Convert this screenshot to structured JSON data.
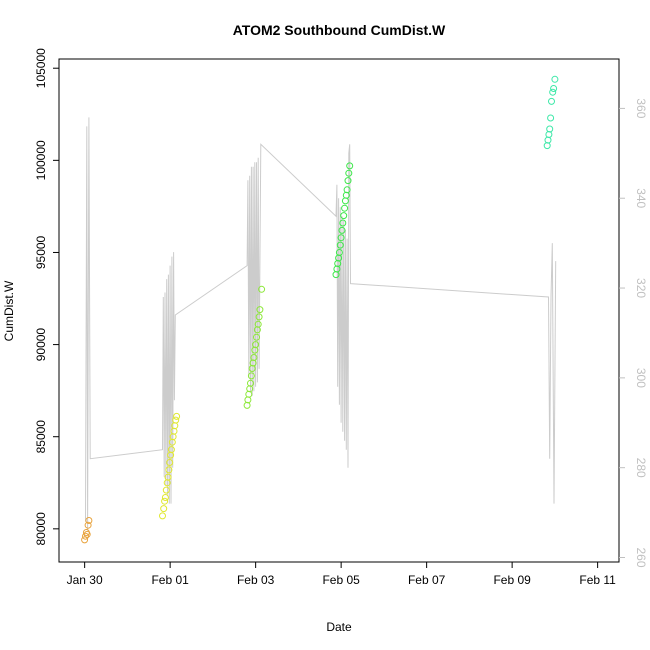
{
  "chart_data": {
    "type": "scatter",
    "title": "ATOM2 Southbound CumDist.W",
    "xlabel": "Date",
    "ylabel": "CumDist.W",
    "x_ticks": [
      "Jan 30",
      "Feb 01",
      "Feb 03",
      "Feb 05",
      "Feb 07",
      "Feb 09",
      "Feb 11"
    ],
    "x_tick_days": [
      0,
      2,
      4,
      6,
      8,
      10,
      12
    ],
    "xlim": [
      -0.6,
      12.5
    ],
    "ylim": [
      78200,
      105500
    ],
    "y_ticks": [
      80000,
      85000,
      90000,
      95000,
      100000,
      105000
    ],
    "y2lim": [
      259,
      371
    ],
    "y2_ticks": [
      260,
      280,
      300,
      320,
      340,
      360
    ],
    "grid": false,
    "series": [
      {
        "color": "#e8a33d",
        "points": [
          [
            0.0,
            79400
          ],
          [
            0.02,
            79600
          ],
          [
            0.04,
            79800
          ],
          [
            0.06,
            79700
          ],
          [
            0.08,
            80200
          ],
          [
            0.1,
            80450
          ]
        ]
      },
      {
        "color": "#e0e830",
        "points": [
          [
            1.82,
            80700
          ],
          [
            1.85,
            81100
          ],
          [
            1.87,
            81500
          ],
          [
            1.89,
            81700
          ],
          [
            1.91,
            82100
          ],
          [
            1.93,
            82500
          ],
          [
            1.95,
            82800
          ],
          [
            1.97,
            83200
          ],
          [
            1.99,
            83600
          ],
          [
            2.01,
            84000
          ],
          [
            2.03,
            84300
          ],
          [
            2.05,
            84700
          ],
          [
            2.07,
            85000
          ],
          [
            2.09,
            85300
          ],
          [
            2.11,
            85600
          ],
          [
            2.13,
            85900
          ],
          [
            2.15,
            86100
          ]
        ]
      },
      {
        "color": "#8ce838",
        "points": [
          [
            3.8,
            86700
          ],
          [
            3.82,
            87000
          ],
          [
            3.84,
            87300
          ],
          [
            3.86,
            87600
          ],
          [
            3.88,
            87900
          ],
          [
            3.9,
            88300
          ],
          [
            3.92,
            88700
          ],
          [
            3.94,
            89000
          ],
          [
            3.96,
            89300
          ],
          [
            3.98,
            89700
          ],
          [
            4.0,
            90000
          ],
          [
            4.02,
            90400
          ],
          [
            4.04,
            90800
          ],
          [
            4.06,
            91100
          ],
          [
            4.08,
            91500
          ],
          [
            4.1,
            91900
          ],
          [
            4.14,
            93000
          ]
        ]
      },
      {
        "color": "#3de84a",
        "points": [
          [
            5.88,
            93800
          ],
          [
            5.9,
            94100
          ],
          [
            5.92,
            94400
          ],
          [
            5.94,
            94700
          ],
          [
            5.96,
            95000
          ],
          [
            5.98,
            95400
          ],
          [
            6.0,
            95800
          ],
          [
            6.02,
            96200
          ],
          [
            6.04,
            96600
          ],
          [
            6.06,
            97000
          ],
          [
            6.08,
            97400
          ],
          [
            6.1,
            97800
          ],
          [
            6.12,
            98100
          ],
          [
            6.14,
            98400
          ],
          [
            6.16,
            98900
          ],
          [
            6.18,
            99300
          ],
          [
            6.2,
            99700
          ]
        ]
      },
      {
        "color": "#3de8a8",
        "points": [
          [
            10.82,
            100800
          ],
          [
            10.84,
            101100
          ],
          [
            10.86,
            101400
          ],
          [
            10.88,
            101700
          ],
          [
            10.9,
            102300
          ],
          [
            10.92,
            103200
          ],
          [
            10.95,
            103700
          ],
          [
            10.97,
            103900
          ],
          [
            11.0,
            104400
          ]
        ]
      }
    ],
    "line_series": {
      "axis": "right",
      "color": "#cccccc",
      "points": [
        [
          0.02,
          268
        ],
        [
          0.05,
          356
        ],
        [
          0.07,
          266
        ],
        [
          0.1,
          358
        ],
        [
          0.13,
          282
        ],
        [
          1.82,
          284
        ],
        [
          1.84,
          318
        ],
        [
          1.86,
          278
        ],
        [
          1.88,
          319
        ],
        [
          1.9,
          276
        ],
        [
          1.92,
          322
        ],
        [
          1.94,
          274
        ],
        [
          1.96,
          323
        ],
        [
          1.98,
          272
        ],
        [
          2.0,
          325
        ],
        [
          2.02,
          272
        ],
        [
          2.04,
          327
        ],
        [
          2.06,
          280
        ],
        [
          2.08,
          328
        ],
        [
          2.1,
          295
        ],
        [
          2.12,
          314
        ],
        [
          3.8,
          325
        ],
        [
          3.82,
          344
        ],
        [
          3.84,
          300
        ],
        [
          3.86,
          345
        ],
        [
          3.88,
          297
        ],
        [
          3.9,
          347
        ],
        [
          3.92,
          296
        ],
        [
          3.94,
          347
        ],
        [
          3.96,
          297
        ],
        [
          3.98,
          348
        ],
        [
          4.0,
          298
        ],
        [
          4.02,
          348
        ],
        [
          4.04,
          299
        ],
        [
          4.06,
          349
        ],
        [
          4.08,
          302
        ],
        [
          4.12,
          352
        ],
        [
          5.88,
          336
        ],
        [
          5.9,
          343
        ],
        [
          5.92,
          298
        ],
        [
          5.94,
          340
        ],
        [
          5.96,
          294
        ],
        [
          5.98,
          338
        ],
        [
          6.0,
          290
        ],
        [
          6.02,
          336
        ],
        [
          6.04,
          288
        ],
        [
          6.06,
          335
        ],
        [
          6.08,
          286
        ],
        [
          6.1,
          333
        ],
        [
          6.12,
          284
        ],
        [
          6.14,
          331
        ],
        [
          6.16,
          280
        ],
        [
          6.18,
          350
        ],
        [
          6.2,
          352
        ],
        [
          6.22,
          321
        ],
        [
          10.85,
          318
        ],
        [
          10.88,
          282
        ],
        [
          10.91,
          318
        ],
        [
          10.94,
          330
        ],
        [
          10.98,
          272
        ],
        [
          11.02,
          326
        ]
      ]
    }
  }
}
